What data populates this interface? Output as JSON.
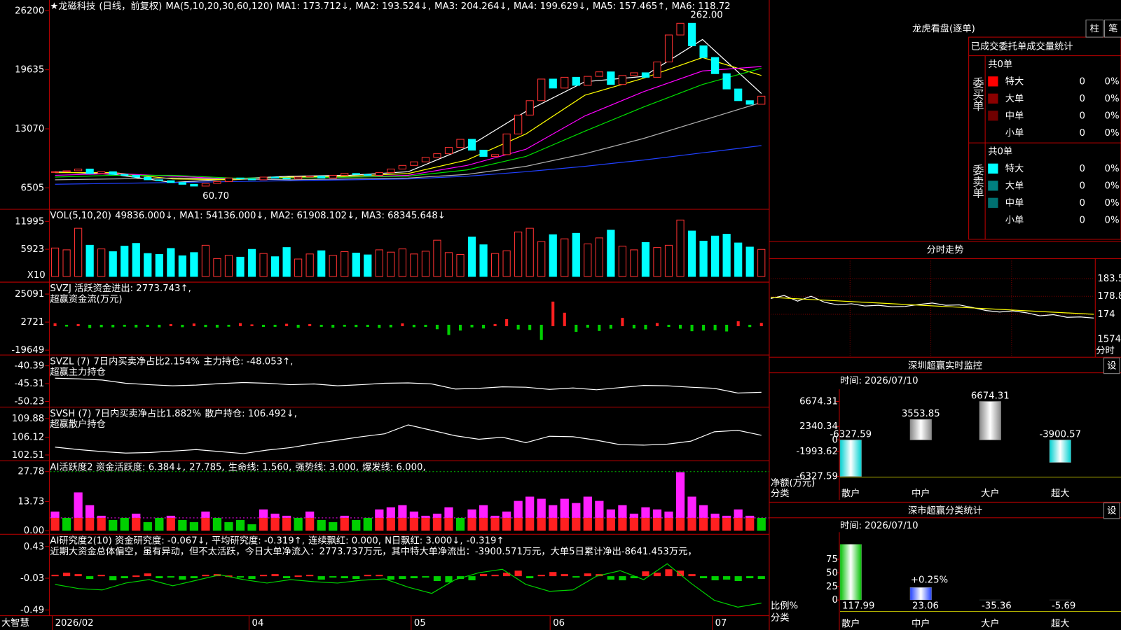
{
  "panels": {
    "main": {
      "legend": [
        {
          "text": "★龙磁科技",
          "color": "#ffffff"
        },
        {
          "text": "(日线，前复权)",
          "color": "#ff3232"
        },
        {
          "text": "MA(5,10,20,30,60,120)",
          "color": "#ffffff"
        },
        {
          "text": "MA1: 173.712↓,",
          "color": "#ffffff"
        },
        {
          "text": "MA2: 193.524↓,",
          "color": "#ffff00"
        },
        {
          "text": "MA3: 204.264↓,",
          "color": "#ff00ff"
        },
        {
          "text": "MA4: 199.629↓,",
          "color": "#00e000"
        },
        {
          "text": "MA5: 157.465↑,",
          "color": "#d0d0d0"
        },
        {
          "text": "MA6: 118.72",
          "color": "#3050ff"
        }
      ],
      "peak_label": "262.00",
      "low_label": "60.70",
      "ylim": [
        4123,
        27391
      ],
      "yticks": [
        26200,
        19635,
        13070,
        6505
      ],
      "up_color": "#ff3232",
      "down_color": "#00ffff",
      "closes": [
        8300,
        8400,
        8600,
        8100,
        8300,
        8000,
        7900,
        7700,
        7400,
        7300,
        7100,
        6900,
        6700,
        7000,
        7200,
        7600,
        7500,
        7400,
        7700,
        7600,
        7500,
        7700,
        7800,
        7600,
        7900,
        8100,
        8000,
        7900,
        8200,
        8600,
        9000,
        9400,
        9900,
        10300,
        11000,
        11900,
        10700,
        10000,
        10200,
        12500,
        14600,
        16200,
        18600,
        17600,
        18800,
        17900,
        18900,
        19400,
        18000,
        19000,
        19300,
        18800,
        20500,
        23500,
        24800,
        22300,
        21000,
        19200,
        17500,
        16200,
        15800,
        16700
      ],
      "ma": [
        {
          "color": "#ffffff",
          "values": [
            8300,
            8000,
            7100,
            7500,
            7800,
            7900,
            8300,
            11000,
            15000,
            18300,
            18900,
            23000,
            17000
          ]
        },
        {
          "color": "#ffff00",
          "values": [
            8200,
            8200,
            7500,
            7400,
            7700,
            7800,
            8100,
            9600,
            12500,
            16800,
            18700,
            21000,
            19000
          ]
        },
        {
          "color": "#ff00ff",
          "values": [
            7900,
            8100,
            7800,
            7500,
            7600,
            7700,
            7900,
            9000,
            10800,
            14500,
            17200,
            19500,
            20000
          ]
        },
        {
          "color": "#00e000",
          "values": [
            7700,
            7900,
            7900,
            7600,
            7600,
            7700,
            7800,
            8500,
            10000,
            12800,
            15500,
            18000,
            19800
          ]
        },
        {
          "color": "#b0b0b0",
          "values": [
            7400,
            7500,
            7600,
            7500,
            7400,
            7500,
            7600,
            8000,
            8900,
            10300,
            12000,
            14000,
            16000
          ]
        },
        {
          "color": "#2040ff",
          "values": [
            6900,
            7000,
            7100,
            7200,
            7300,
            7400,
            7500,
            7800,
            8300,
            8900,
            9600,
            10400,
            11200
          ]
        }
      ]
    },
    "volume": {
      "legend": [
        {
          "text": "VOL(5,10,20)",
          "color": "#ffffff"
        },
        {
          "text": "49836.000↓,",
          "color": "#ffffff"
        },
        {
          "text": "MA1: 54136.000↓,",
          "color": "#ffff00"
        },
        {
          "text": "MA2: 61908.102↓,",
          "color": "#ff00ff"
        },
        {
          "text": "MA3: 68345.648↓",
          "color": "#00e000"
        }
      ],
      "unit": "X10",
      "ylim": [
        -1240,
        14640
      ],
      "yticks": [
        11995,
        5923
      ],
      "values": [
        6200,
        5800,
        10500,
        6800,
        6000,
        5400,
        6600,
        7200,
        5000,
        4800,
        6100,
        4500,
        5200,
        6800,
        3900,
        4600,
        4200,
        5900,
        5000,
        4300,
        6300,
        3800,
        4900,
        5600,
        4600,
        5400,
        5100,
        4700,
        5800,
        5300,
        6000,
        4900,
        5500,
        7900,
        5200,
        4800,
        8600,
        6900,
        5000,
        5600,
        9700,
        10500,
        7600,
        9100,
        8200,
        9400,
        7100,
        8400,
        10100,
        6600,
        5800,
        7400,
        6300,
        6800,
        12300,
        9900,
        7700,
        8800,
        9200,
        7300,
        6400,
        5900
      ]
    },
    "flow": {
      "legend": [
        {
          "text": "SVZJ  活跃资金进出: 2773.743↑,",
          "color": "#ffffff"
        }
      ],
      "legend2": "超赢资金流(万元)",
      "ylim": [
        -23560,
        34600
      ],
      "yticks": [
        25091,
        2721,
        -19649
      ],
      "values": [
        1200,
        -300,
        600,
        -1500,
        -800,
        -900,
        -400,
        -1000,
        -600,
        -900,
        500,
        -800,
        1000,
        -700,
        -1100,
        -400,
        1300,
        300,
        -600,
        -500,
        800,
        -1300,
        600,
        -500,
        -1200,
        -400,
        -700,
        -600,
        -1400,
        -900,
        1100,
        -800,
        -600,
        -2400,
        -7000,
        -3500,
        -900,
        -1800,
        600,
        4500,
        -2600,
        -3000,
        -11000,
        18500,
        9600,
        -4500,
        -1200,
        -3800,
        -2000,
        5500,
        -1800,
        -2500,
        1400,
        -600,
        -2000,
        -4000,
        -3500,
        -3200,
        -4200,
        2800,
        -700,
        1500
      ]
    },
    "main_hold": {
      "legend": [
        {
          "text": "SVZL (7)",
          "color": "#ffffff"
        },
        {
          "text": "7日内买卖净占比2.154%",
          "color": "#00e000"
        },
        {
          "text": "主力持仓: -48.053↑,",
          "color": "#ffffff"
        }
      ],
      "legend2": "超赢主力持仓",
      "ylim": [
        -51.8,
        -37.4
      ],
      "yticks": [
        -40.39,
        -45.31,
        -50.23
      ],
      "line": [
        -43.8,
        -44.0,
        -44.3,
        -45.2,
        -45.6,
        -45.9,
        -45.7,
        -45.3,
        -45.0,
        -45.2,
        -45.6,
        -45.4,
        -45.9,
        -45.6,
        -45.2,
        -45.1,
        -45.4,
        -46.8,
        -46.6,
        -46.2,
        -46.3,
        -46.9,
        -46.5,
        -47.0,
        -46.4,
        -45.8,
        -45.9,
        -46.3,
        -46.6,
        -47.9,
        -47.7
      ]
    },
    "retail_hold": {
      "legend": [
        {
          "text": "SVSH (7)",
          "color": "#ffffff"
        },
        {
          "text": "7日内买卖净占比1.882%",
          "color": "#ff3232"
        },
        {
          "text": "散户持仓: 106.492↓,",
          "color": "#ffffff"
        }
      ],
      "legend2": "超赢散户持仓",
      "ylim": [
        101.35,
        112.19
      ],
      "yticks": [
        109.88,
        106.12,
        102.51
      ],
      "line": [
        104.1,
        103.6,
        103.2,
        102.9,
        103.0,
        103.3,
        103.6,
        103.2,
        102.8,
        103.5,
        104.0,
        104.8,
        105.5,
        106.2,
        106.8,
        108.6,
        107.5,
        106.4,
        105.7,
        106.1,
        105.0,
        106.3,
        106.2,
        105.5,
        104.6,
        104.5,
        104.7,
        105.3,
        107.2,
        107.5,
        106.5
      ]
    },
    "activity": {
      "legend": [
        {
          "text": "AI活跃度2 资金活跃度: 6.384↓,",
          "color": "#ffffff"
        },
        {
          "text": "27.785,",
          "color": "#ffff00"
        },
        {
          "text": "生命线: 1.560,",
          "color": "#ffffff"
        },
        {
          "text": "强势线: 3.000,",
          "color": "#ff3232"
        },
        {
          "text": "爆发线: 6.000,",
          "color": "#ff00ff"
        }
      ],
      "ylim": [
        -1.7,
        32.9
      ],
      "yticks": [
        27.78,
        13.73,
        {
          "value": 0,
          "label": "0.00"
        }
      ],
      "guide_lines": [
        {
          "value": 6,
          "color": "#ff00ff"
        },
        {
          "value": 27.78,
          "color": "#00c000"
        }
      ],
      "values": [
        9,
        6,
        18,
        12,
        7,
        5,
        6,
        8,
        4,
        6,
        7,
        5,
        4,
        9,
        6,
        4,
        5,
        3,
        10,
        8,
        7,
        6,
        9,
        5,
        4,
        7,
        5,
        6,
        10,
        11,
        12,
        9,
        7,
        8,
        11,
        6,
        10,
        12,
        7,
        9,
        14,
        16,
        15,
        12,
        15,
        13,
        16,
        14,
        10,
        12,
        8,
        11,
        10,
        9,
        27.5,
        16,
        12,
        8,
        7,
        10,
        7,
        6
      ]
    },
    "research": {
      "legend": [
        {
          "text": "AI研究度2(10) 资金研究度: -0.067↓,",
          "color": "#ffffff"
        },
        {
          "text": "平均研究度: -0.319↑,",
          "color": "#ffff00"
        },
        {
          "text": "连续飘红: 0.000,",
          "color": "#ff00ff"
        },
        {
          "text": "N日飘红: 3.000↓,",
          "color": "#ffffff"
        },
        {
          "text": "-0.319↑",
          "color": "#3050ff"
        }
      ],
      "legend2": "近期大资金总体偏空，虽有异动，但不太活跃，今日大单净流入：2773.737万元，其中特大单净流出：-3900.571万元，大单5日累计净出-8641.453万元，",
      "ylim": [
        -0.574,
        0.608
      ],
      "yticks": [
        0.43,
        -0.03,
        -0.49
      ],
      "values": [
        0.02,
        0.05,
        0.03,
        -0.04,
        0.02,
        -0.06,
        -0.03,
        0.01,
        0.04,
        -0.03,
        -0.02,
        -0.05,
        -0.03,
        0.02,
        0.03,
        0.01,
        -0.02,
        -0.04,
        0.02,
        0.03,
        -0.03,
        0.01,
        0.02,
        -0.05,
        -0.02,
        -0.03,
        -0.04,
        0.02,
        0.02,
        -0.05,
        -0.04,
        -0.03,
        -0.02,
        -0.07,
        -0.09,
        -0.04,
        -0.06,
        0.03,
        0.02,
        0.05,
        0.08,
        -0.03,
        0.02,
        0.06,
        0.03,
        -0.02,
        0.04,
        0.03,
        -0.05,
        -0.06,
        -0.03,
        0.07,
        0.05,
        0.1,
        0.08,
        0.03,
        -0.03,
        -0.06,
        -0.05,
        -0.07,
        -0.03,
        -0.04
      ],
      "line": [
        -0.12,
        -0.18,
        -0.2,
        -0.1,
        -0.05,
        -0.14,
        -0.06,
        0.02,
        -0.05,
        -0.1,
        -0.05,
        -0.08,
        -0.1,
        -0.06,
        -0.04,
        -0.16,
        -0.25,
        -0.05,
        0.05,
        0.1,
        -0.12,
        -0.22,
        -0.2,
        0.0,
        0.08,
        -0.05,
        0.18,
        -0.1,
        -0.35,
        -0.45,
        -0.39
      ]
    }
  },
  "footer": {
    "brand": "大智慧",
    "dates": [
      "2026/02",
      null,
      null,
      null,
      null,
      null,
      null,
      null,
      null,
      null,
      null,
      null,
      null,
      null,
      null,
      null,
      null,
      "04",
      null,
      null,
      null,
      null,
      null,
      null,
      null,
      null,
      null,
      null,
      null,
      null,
      null,
      "05",
      null,
      null,
      null,
      null,
      null,
      null,
      null,
      null,
      null,
      null,
      null,
      "06",
      null,
      null,
      null,
      null,
      null,
      null,
      null,
      null,
      null,
      null,
      null,
      null,
      null,
      "07",
      null,
      null,
      null,
      null
    ]
  },
  "order_stats": {
    "title": "龙虎看盘(逐单)",
    "buttons": [
      "柱",
      "笔"
    ],
    "heading": "已成交委托单成交量统计",
    "sections": [
      {
        "label": "委买单",
        "total": "共0单",
        "rows": [
          {
            "name": "特大",
            "color": "#ff0000",
            "count": "0",
            "pct": "0%"
          },
          {
            "name": "大单",
            "color": "#8b0000",
            "count": "0",
            "pct": "0%"
          },
          {
            "name": "中单",
            "color": "#700000",
            "count": "0",
            "pct": "0%"
          },
          {
            "name": "小单",
            "count": "0",
            "pct": "0%"
          }
        ]
      },
      {
        "label": "委卖单",
        "total": "共0单",
        "rows": [
          {
            "name": "特大",
            "color": "#00ffff",
            "count": "0",
            "pct": "0%"
          },
          {
            "name": "大单",
            "color": "#008080",
            "count": "0",
            "pct": "0%"
          },
          {
            "name": "中单",
            "color": "#007070",
            "count": "0",
            "pct": "0%"
          },
          {
            "name": "小单",
            "count": "0",
            "pct": "0%"
          }
        ]
      }
    ]
  },
  "intraday": {
    "title": "分时走势",
    "ylim": [
      170.2,
      188.25
    ],
    "yticks": [
      183.5,
      178.8,
      174.0
    ],
    "volume_label": "1574",
    "x_label": "分时",
    "price": [
      178.2,
      179,
      177.5,
      178.8,
      177.2,
      176.5,
      176.8,
      176.2,
      176.4,
      176.0,
      176.1,
      176.6,
      177.0,
      176.4,
      176.5,
      175.8,
      175.0,
      174.6,
      174.9,
      174.4,
      173.6,
      173.9,
      173.2,
      173.3,
      173.0
    ],
    "average": [
      178.5,
      174.0
    ]
  },
  "monitor": {
    "title": "深圳超赢实时监控",
    "button": "设",
    "time": "时间: 2026/07/10",
    "ylim": [
      -6327.59,
      6674.31
    ],
    "yticks": [
      6674.31,
      2340.34,
      0,
      -1993.62,
      -6327.59
    ],
    "categories": [
      "散户",
      "中户",
      "大户",
      "超大"
    ],
    "values": [
      -6327.59,
      3553.85,
      6674.31,
      -3900.57
    ],
    "y_label": "净额(万元)",
    "x_label": "分类"
  },
  "stats": {
    "title": "深市超赢分类统计",
    "button": "设",
    "time": "时间: 2026/07/10",
    "ylim": [
      0,
      102
    ],
    "yticks": [
      75,
      50,
      25,
      0
    ],
    "categories": [
      "散户",
      "中户",
      "大户",
      "超大"
    ],
    "values": [
      117.99,
      23.06,
      -35.36,
      -5.69
    ],
    "label_colors": [
      "#00ff00",
      "#3050ff",
      "#00ffff",
      "#ff3232"
    ],
    "annotation": "+0.25%",
    "y_label": "比例%",
    "x_label": "分类"
  }
}
